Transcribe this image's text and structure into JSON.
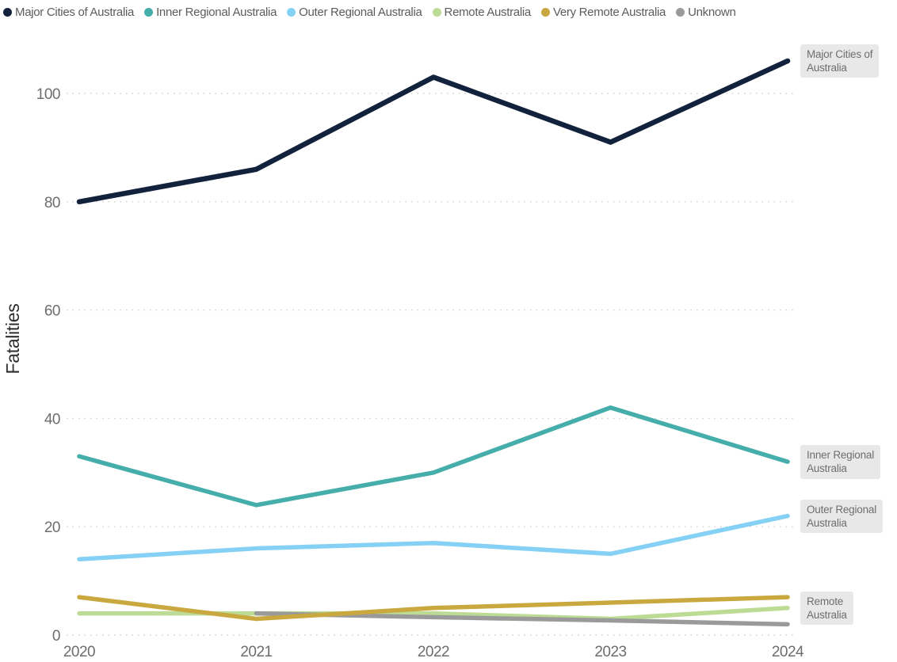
{
  "legend": {
    "items": [
      {
        "label": "Major Cities of Australia",
        "color": "#13223c"
      },
      {
        "label": "Inner Regional Australia",
        "color": "#45adaa"
      },
      {
        "label": "Outer Regional Australia",
        "color": "#85d1f5"
      },
      {
        "label": "Remote Australia",
        "color": "#bcdc96"
      },
      {
        "label": "Very Remote Australia",
        "color": "#c9a83f"
      },
      {
        "label": "Unknown",
        "color": "#9a9a9a"
      }
    ]
  },
  "chart_data": {
    "type": "line",
    "title": "",
    "xlabel": "",
    "ylabel": "Fatalities",
    "x": [
      "2020",
      "2021",
      "2022",
      "2023",
      "2024"
    ],
    "yticks": [
      0,
      20,
      40,
      60,
      80,
      100
    ],
    "ylim": [
      0,
      110
    ],
    "grid": "horizontal-dotted",
    "grid_color": "#cfcfcf",
    "legend_position": "top",
    "series": [
      {
        "name": "Major Cities of Australia",
        "color": "#13223c",
        "values": [
          80,
          86,
          103,
          91,
          106
        ],
        "right_label_lines": [
          "Major Cities of",
          "Australia"
        ]
      },
      {
        "name": "Inner Regional Australia",
        "color": "#45adaa",
        "values": [
          33,
          24,
          30,
          42,
          32
        ],
        "right_label_lines": [
          "Inner Regional",
          "Australia"
        ]
      },
      {
        "name": "Outer Regional Australia",
        "color": "#85d1f5",
        "values": [
          14,
          16,
          17,
          15,
          22
        ],
        "right_label_lines": [
          "Outer Regional",
          "Australia"
        ]
      },
      {
        "name": "Remote Australia",
        "color": "#bcdc96",
        "values": [
          4,
          4,
          4,
          3,
          5
        ],
        "right_label_lines": [
          "Remote",
          "Australia"
        ]
      },
      {
        "name": "Very Remote Australia",
        "color": "#c9a83f",
        "values": [
          7,
          3,
          5,
          6,
          7
        ],
        "right_label_lines": null
      },
      {
        "name": "Unknown",
        "color": "#9a9a9a",
        "values": [
          null,
          4,
          3.3,
          2.7,
          2
        ],
        "right_label_lines": null
      }
    ],
    "draw_order": [
      0,
      1,
      2,
      3,
      5,
      4
    ]
  }
}
